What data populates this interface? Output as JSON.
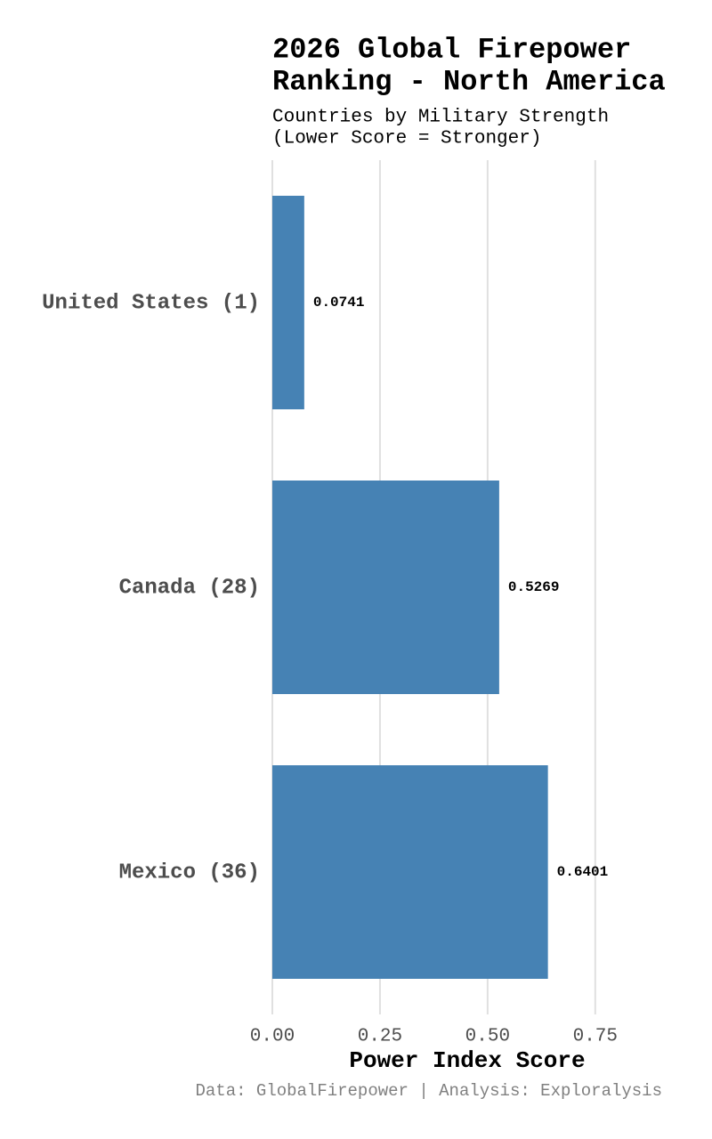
{
  "chart_data": {
    "type": "bar",
    "orientation": "horizontal",
    "title": [
      "2026 Global Firepower",
      "Ranking - North America"
    ],
    "subtitle": [
      "Countries by Military Strength",
      "(Lower Score = Stronger)"
    ],
    "x_label": "Power Index Score",
    "caption": "Data: GlobalFirepower | Analysis: Exploralysis",
    "categories": [
      "United States (1)",
      "Canada (28)",
      "Mexico (36)"
    ],
    "values": [
      0.0741,
      0.5269,
      0.6401
    ],
    "color": "#4682b4",
    "xlim": [
      0,
      0.8
    ],
    "xticks": [
      {
        "value": 0,
        "label": "0.00"
      },
      {
        "value": 0.25,
        "label": "0.25"
      },
      {
        "value": 0.5,
        "label": "0.50"
      },
      {
        "value": 0.75,
        "label": "0.75"
      }
    ],
    "grid": true
  }
}
